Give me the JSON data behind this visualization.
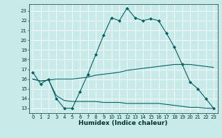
{
  "xlabel": "Humidex (Indice chaleur)",
  "ylabel": "",
  "background_color": "#c8eae8",
  "grid_color": "#ffffff",
  "line_color": "#006060",
  "xlim": [
    -0.5,
    23.5
  ],
  "ylim": [
    12.5,
    23.7
  ],
  "yticks": [
    13,
    14,
    15,
    16,
    17,
    18,
    19,
    20,
    21,
    22,
    23
  ],
  "xticks": [
    0,
    1,
    2,
    3,
    4,
    5,
    6,
    7,
    8,
    9,
    10,
    11,
    12,
    13,
    14,
    15,
    16,
    17,
    18,
    19,
    20,
    21,
    22,
    23
  ],
  "line1_x": [
    0,
    1,
    2,
    3,
    4,
    5,
    6,
    7,
    8,
    9,
    10,
    11,
    12,
    13,
    14,
    15,
    16,
    17,
    18,
    19,
    20,
    21,
    22,
    23
  ],
  "line1_y": [
    16.7,
    15.5,
    16.0,
    14.0,
    13.0,
    13.0,
    14.7,
    16.5,
    18.5,
    20.5,
    22.3,
    22.0,
    23.3,
    22.3,
    22.0,
    22.2,
    22.0,
    20.7,
    19.3,
    17.5,
    15.7,
    15.0,
    14.0,
    13.0
  ],
  "line2_x": [
    0,
    1,
    2,
    3,
    4,
    5,
    6,
    7,
    8,
    9,
    10,
    11,
    12,
    13,
    14,
    15,
    16,
    17,
    18,
    19,
    20,
    21,
    22,
    23
  ],
  "line2_y": [
    16.0,
    15.8,
    15.9,
    16.0,
    16.0,
    16.0,
    16.1,
    16.2,
    16.4,
    16.5,
    16.6,
    16.7,
    16.9,
    17.0,
    17.1,
    17.2,
    17.3,
    17.4,
    17.5,
    17.5,
    17.5,
    17.4,
    17.3,
    17.2
  ],
  "line3_x": [
    0,
    1,
    2,
    3,
    4,
    5,
    6,
    7,
    8,
    9,
    10,
    11,
    12,
    13,
    14,
    15,
    16,
    17,
    18,
    19,
    20,
    21,
    22,
    23
  ],
  "line3_y": [
    16.0,
    15.8,
    15.9,
    14.3,
    13.8,
    13.7,
    13.7,
    13.7,
    13.7,
    13.6,
    13.6,
    13.6,
    13.5,
    13.5,
    13.5,
    13.5,
    13.5,
    13.4,
    13.3,
    13.2,
    13.1,
    13.1,
    13.0,
    13.0
  ],
  "tick_fontsize": 5,
  "xlabel_fontsize": 6.5,
  "tick_color": "#003030",
  "spine_color": "#003030"
}
